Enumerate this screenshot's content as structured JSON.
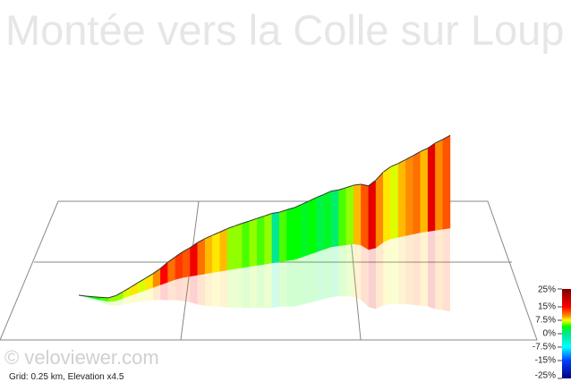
{
  "chart_data": {
    "type": "profile3d",
    "title": "Montée vers la Colle sur Loup",
    "watermark": "© veloviewer.com",
    "footnote": "Grid: 0.25 km, Elevation x4.5",
    "gradients": [
      3,
      4,
      4,
      5,
      6,
      6,
      7,
      8,
      7,
      8,
      10,
      15,
      11,
      13,
      12,
      16,
      11,
      9,
      8,
      9,
      6,
      6,
      5,
      6,
      5,
      6,
      0,
      5,
      4,
      4,
      3,
      4,
      2,
      3,
      1,
      5,
      6,
      9,
      12,
      17,
      10,
      8,
      7,
      9,
      10,
      11,
      9,
      17,
      10,
      12
    ],
    "colorscale": [
      [
        25,
        "#800000"
      ],
      [
        15,
        "#ff0000"
      ],
      [
        10,
        "#ff8c00"
      ],
      [
        7.5,
        "#ffff00"
      ],
      [
        4,
        "#00ff00"
      ],
      [
        0,
        "#00e890"
      ],
      [
        -7.5,
        "#00ffff"
      ],
      [
        -15,
        "#0040ff"
      ],
      [
        -25,
        "#000080"
      ]
    ],
    "legend_lim": [
      -25,
      25
    ],
    "legend_ticks": [
      {
        "value": 25,
        "label": "25%"
      },
      {
        "value": 15,
        "label": "15%"
      },
      {
        "value": 7.5,
        "label": "7.5%"
      },
      {
        "value": 0,
        "label": "0%"
      },
      {
        "value": -7.5,
        "label": "-7.5%"
      },
      {
        "value": -15,
        "label": "-15%"
      },
      {
        "value": -25,
        "label": "-25%"
      }
    ]
  }
}
